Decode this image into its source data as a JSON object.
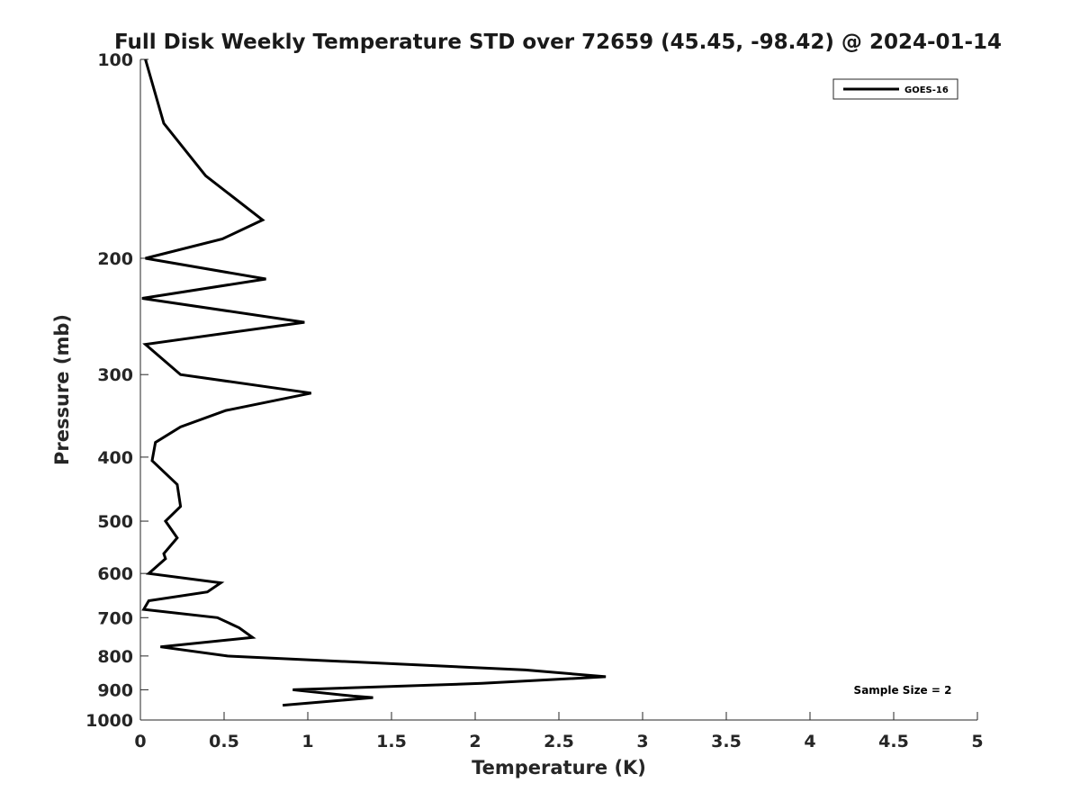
{
  "chart_data": {
    "type": "line",
    "title": "Full Disk Weekly Temperature STD over 72659 (45.45, -98.42) @ 2024-01-14",
    "xlabel": "Temperature (K)",
    "ylabel": "Pressure (mb)",
    "xlim": [
      0,
      5
    ],
    "ylim": [
      100,
      1000
    ],
    "y_scale": "log",
    "y_reversed": true,
    "grid": false,
    "legend_position": "top-right",
    "x_ticks": [
      "0",
      "0.5",
      "1",
      "1.5",
      "2",
      "2.5",
      "3",
      "3.5",
      "4",
      "4.5",
      "5"
    ],
    "y_ticks": [
      "100",
      "200",
      "300",
      "400",
      "500",
      "600",
      "700",
      "800",
      "900",
      "1000"
    ],
    "annotation": "Sample Size = 2",
    "series": [
      {
        "name": "GOES-16",
        "color": "#000000",
        "points": [
          {
            "x": 0.03,
            "y": 100
          },
          {
            "x": 0.14,
            "y": 125
          },
          {
            "x": 0.39,
            "y": 150
          },
          {
            "x": 0.73,
            "y": 175
          },
          {
            "x": 0.49,
            "y": 187
          },
          {
            "x": 0.03,
            "y": 200
          },
          {
            "x": 0.75,
            "y": 215
          },
          {
            "x": 0.01,
            "y": 230
          },
          {
            "x": 0.98,
            "y": 250
          },
          {
            "x": 0.03,
            "y": 270
          },
          {
            "x": 0.24,
            "y": 300
          },
          {
            "x": 1.02,
            "y": 320
          },
          {
            "x": 0.51,
            "y": 340
          },
          {
            "x": 0.24,
            "y": 360
          },
          {
            "x": 0.09,
            "y": 380
          },
          {
            "x": 0.07,
            "y": 405
          },
          {
            "x": 0.22,
            "y": 440
          },
          {
            "x": 0.24,
            "y": 475
          },
          {
            "x": 0.15,
            "y": 500
          },
          {
            "x": 0.22,
            "y": 530
          },
          {
            "x": 0.14,
            "y": 560
          },
          {
            "x": 0.15,
            "y": 570
          },
          {
            "x": 0.05,
            "y": 600
          },
          {
            "x": 0.48,
            "y": 620
          },
          {
            "x": 0.4,
            "y": 640
          },
          {
            "x": 0.05,
            "y": 660
          },
          {
            "x": 0.02,
            "y": 680
          },
          {
            "x": 0.46,
            "y": 700
          },
          {
            "x": 0.59,
            "y": 725
          },
          {
            "x": 0.67,
            "y": 750
          },
          {
            "x": 0.12,
            "y": 775
          },
          {
            "x": 0.52,
            "y": 800
          },
          {
            "x": 2.3,
            "y": 840
          },
          {
            "x": 2.78,
            "y": 860
          },
          {
            "x": 2.04,
            "y": 880
          },
          {
            "x": 0.91,
            "y": 900
          },
          {
            "x": 1.27,
            "y": 920
          },
          {
            "x": 1.39,
            "y": 925
          },
          {
            "x": 0.85,
            "y": 950
          }
        ]
      }
    ]
  }
}
